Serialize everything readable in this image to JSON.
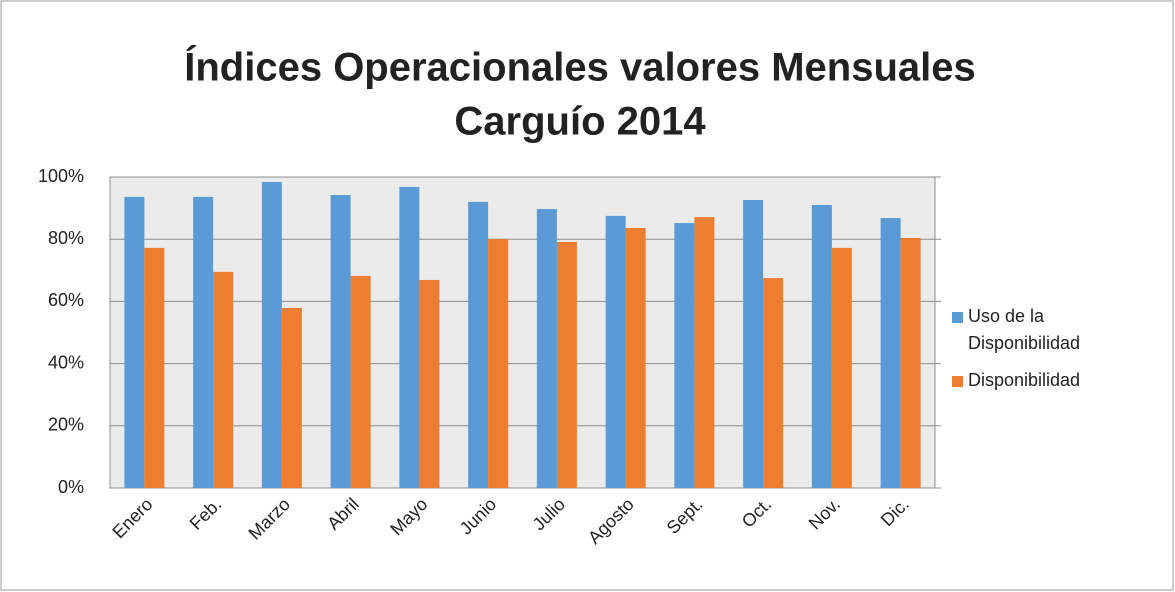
{
  "chart_data": {
    "type": "bar",
    "title": [
      "Índices Operacionales valores Mensuales",
      "Carguío 2014"
    ],
    "categories": [
      "Enero",
      "Feb.",
      "Marzo",
      "Abril",
      "Mayo",
      "Junio",
      "Julio",
      "Agosto",
      "Sept.",
      "Oct.",
      "Nov.",
      "Dic."
    ],
    "series": [
      {
        "name": "Uso de la Disponibilidad",
        "color": "#5b9bd5",
        "values": [
          93.6,
          93.6,
          98.4,
          94.2,
          96.8,
          92,
          89.7,
          87.5,
          85.2,
          92.6,
          91,
          86.8
        ]
      },
      {
        "name": "Disponibilidad",
        "color": "#ed7d31",
        "values": [
          77.2,
          69.5,
          57.9,
          68.2,
          66.9,
          80,
          79.1,
          83.6,
          87.1,
          67.5,
          77.2,
          80.4
        ]
      }
    ],
    "ylim": [
      0,
      100
    ],
    "yticks": [
      {
        "value": 0,
        "label": "0%"
      },
      {
        "value": 20,
        "label": "20%"
      },
      {
        "value": 40,
        "label": "40%"
      },
      {
        "value": 60,
        "label": "60%"
      },
      {
        "value": 80,
        "label": "80%"
      },
      {
        "value": 100,
        "label": "100%"
      }
    ],
    "grid": true,
    "legend": "right"
  }
}
